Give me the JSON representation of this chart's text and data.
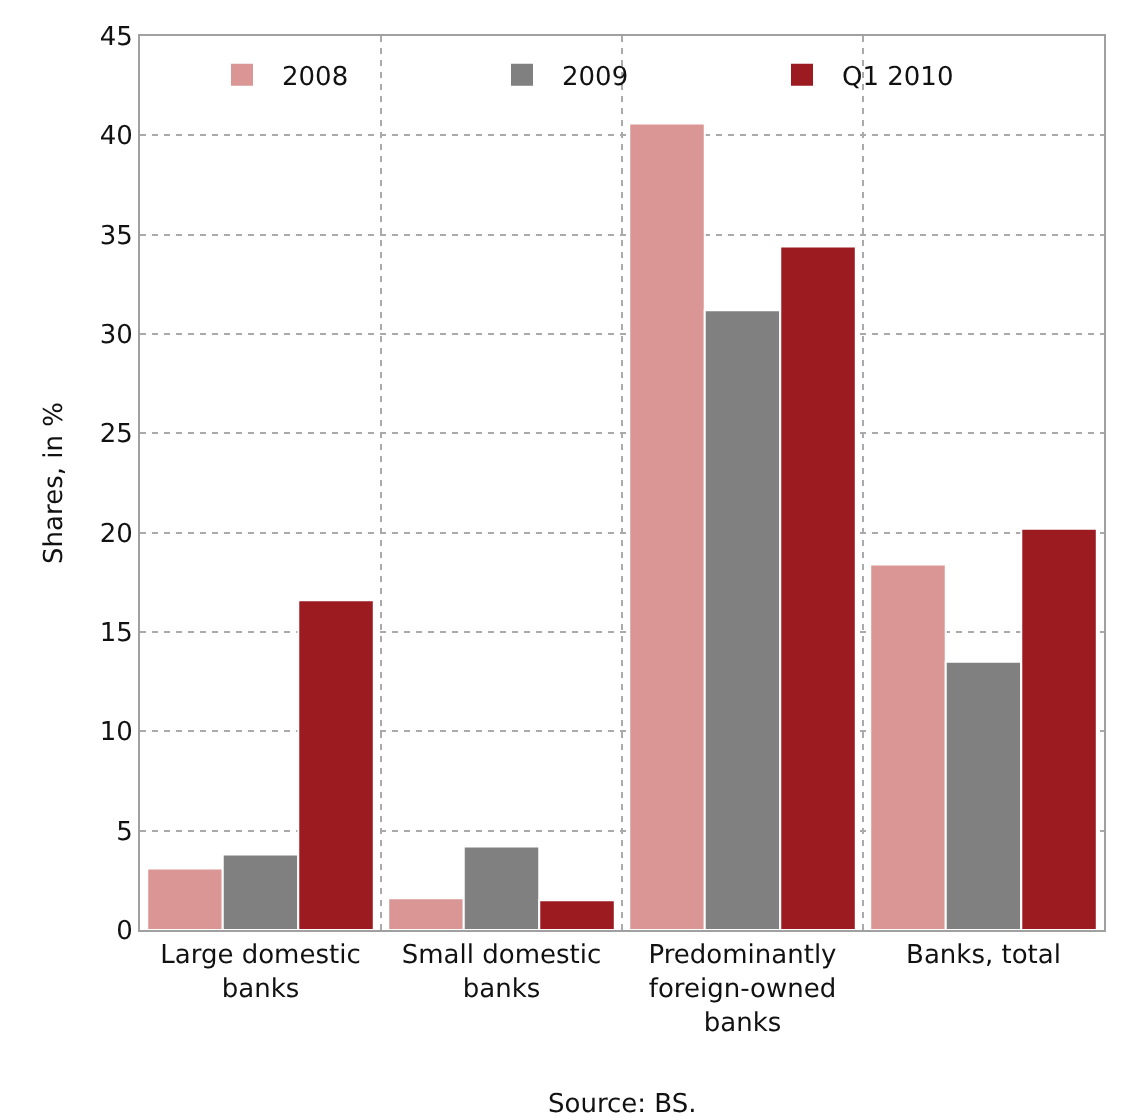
{
  "chart_data": {
    "type": "bar",
    "ylabel": "Shares, in %",
    "categories": [
      "Large domestic\nbanks",
      "Small domestic\nbanks",
      "Predominantly\nforeign-owned\nbanks",
      "Banks, total"
    ],
    "series": [
      {
        "name": "2008",
        "color": "#d99694",
        "values": [
          3.1,
          1.6,
          40.6,
          18.4
        ]
      },
      {
        "name": "2009",
        "color": "#808080",
        "values": [
          3.8,
          4.2,
          31.2,
          13.5
        ]
      },
      {
        "name": "Q1 2010",
        "color": "#9b1b21",
        "values": [
          16.6,
          1.5,
          34.4,
          20.2
        ]
      }
    ],
    "ylim": [
      0,
      45
    ],
    "yticks": [
      0,
      5,
      10,
      15,
      20,
      25,
      30,
      35,
      40,
      45
    ],
    "grid": true,
    "legend": "top",
    "annotations": [
      "Source: BS."
    ]
  }
}
